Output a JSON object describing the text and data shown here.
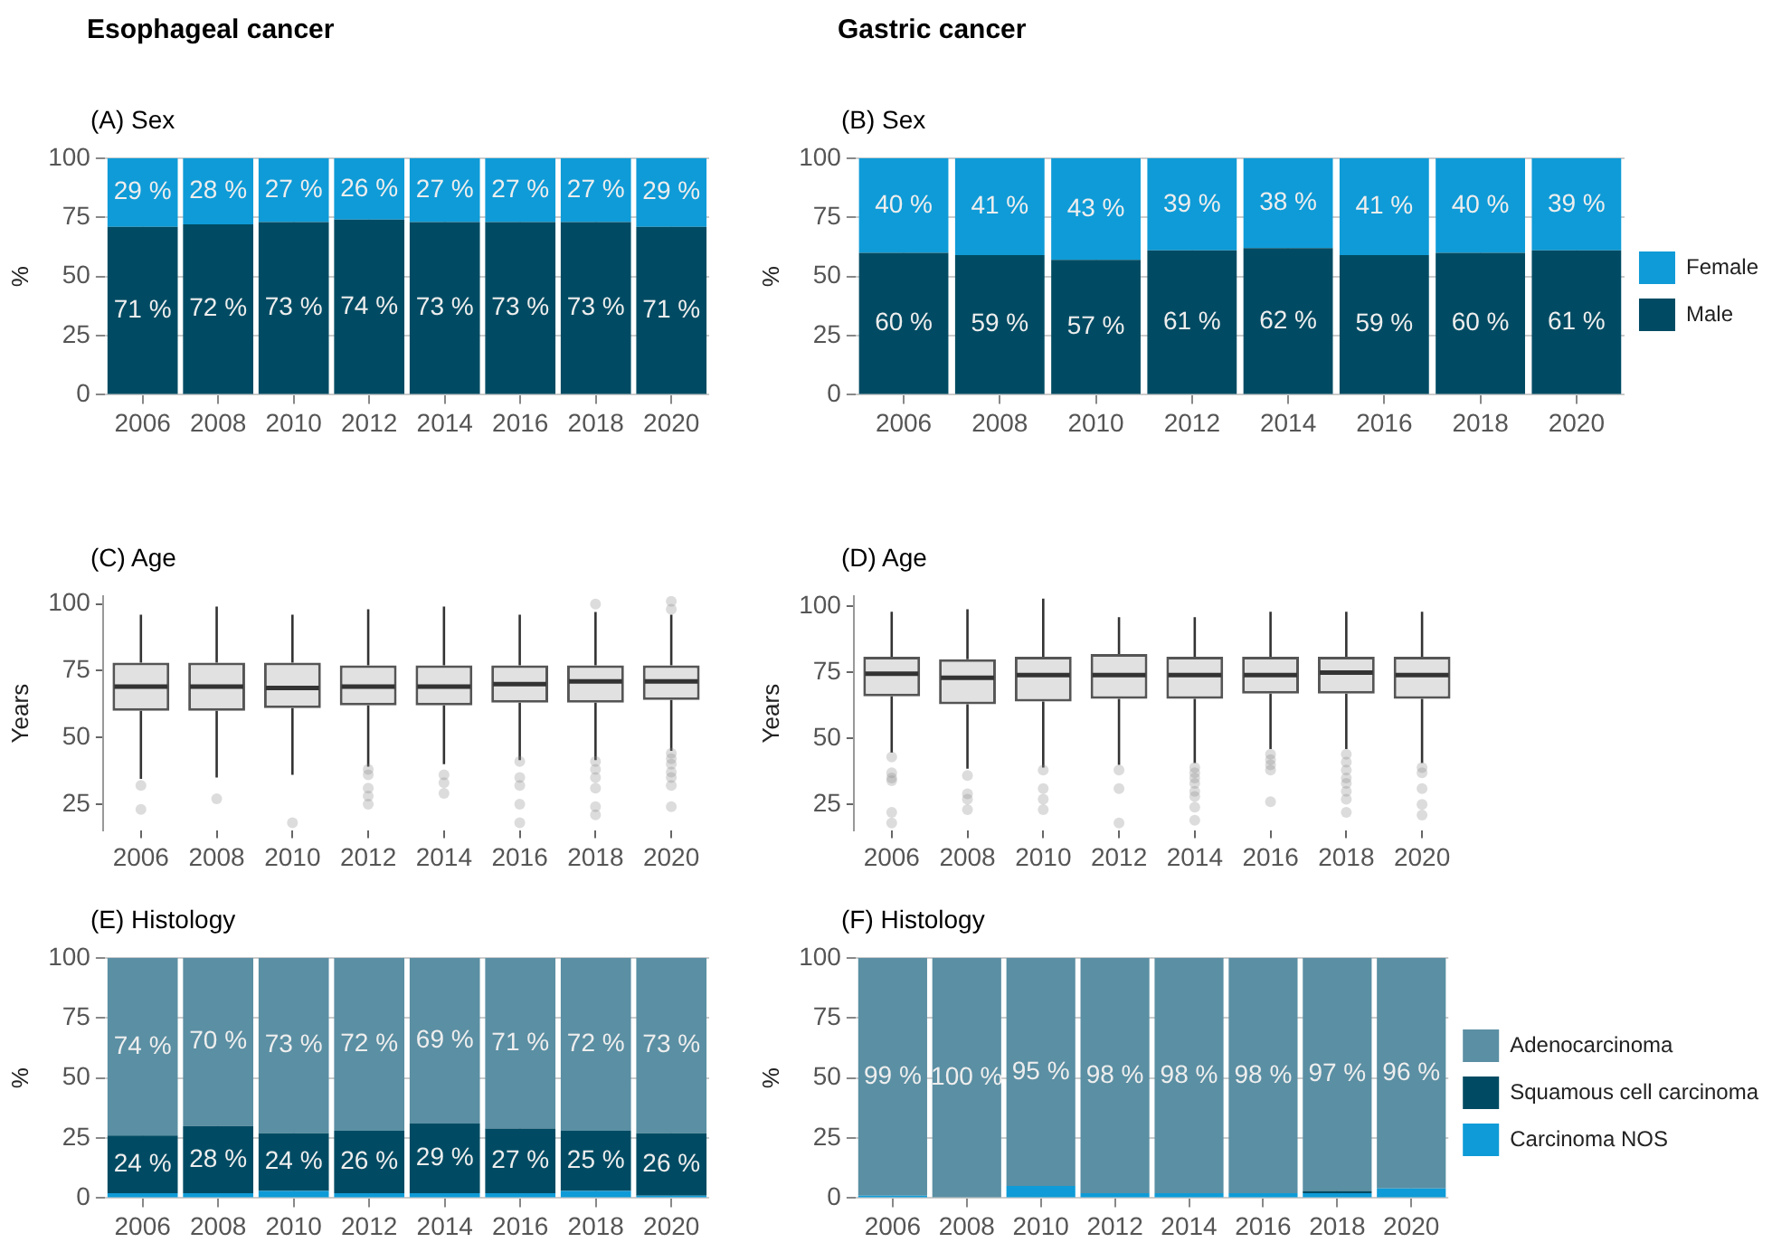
{
  "chart_data": [
    {
      "type": "bar",
      "title": "Esophageal cancer",
      "subtitle": "(A) Sex",
      "ylabel": "%",
      "categories": [
        "2006",
        "2008",
        "2010",
        "2012",
        "2014",
        "2016",
        "2018",
        "2020"
      ],
      "stacked": true,
      "ylim": [
        0,
        100
      ],
      "yticks": [
        0,
        25,
        50,
        75,
        100
      ],
      "grid": true,
      "series": [
        {
          "color": "#004b63",
          "values": [
            71,
            72,
            73,
            74,
            73,
            73,
            73,
            71
          ],
          "value_labels": [
            "71 %",
            "72 %",
            "73 %",
            "74 %",
            "73 %",
            "73 %",
            "73 %",
            "71 %"
          ]
        },
        {
          "color": "#0f9bd7",
          "values": [
            29,
            28,
            27,
            26,
            27,
            27,
            27,
            29
          ],
          "value_labels": [
            "29 %",
            "28 %",
            "27 %",
            "26 %",
            "27 %",
            "27 %",
            "27 %",
            "29 %"
          ]
        }
      ]
    },
    {
      "type": "bar",
      "title": "Gastric cancer",
      "subtitle": "(B) Sex",
      "ylabel": "%",
      "categories": [
        "2006",
        "2008",
        "2010",
        "2012",
        "2014",
        "2016",
        "2018",
        "2020"
      ],
      "stacked": true,
      "ylim": [
        0,
        100
      ],
      "yticks": [
        0,
        25,
        50,
        75,
        100
      ],
      "grid": true,
      "legend": "right",
      "series": [
        {
          "name": "Male",
          "color": "#004b63",
          "values": [
            60,
            59,
            57,
            61,
            62,
            59,
            60,
            61
          ],
          "value_labels": [
            "60 %",
            "59 %",
            "57 %",
            "61 %",
            "62 %",
            "59 %",
            "60 %",
            "61 %"
          ]
        },
        {
          "name": "Female",
          "color": "#0f9bd7",
          "values": [
            40,
            41,
            43,
            39,
            38,
            41,
            40,
            39
          ],
          "value_labels": [
            "40 %",
            "41 %",
            "43 %",
            "39 %",
            "38 %",
            "41 %",
            "40 %",
            "39 %"
          ]
        }
      ]
    },
    {
      "type": "box",
      "subtitle": "(C) Age",
      "ylabel": "Years",
      "categories": [
        "2006",
        "2008",
        "2010",
        "2012",
        "2014",
        "2016",
        "2018",
        "2020"
      ],
      "ylim": [
        15,
        103
      ],
      "yticks": [
        25,
        50,
        75,
        100
      ],
      "grid": false,
      "boxes": [
        {
          "low": 34.5,
          "q1": 60,
          "median": 69,
          "q3": 78,
          "high": 96,
          "outliers": [
            32,
            23
          ]
        },
        {
          "low": 35,
          "q1": 60,
          "median": 69,
          "q3": 78,
          "high": 99,
          "outliers": [
            27
          ]
        },
        {
          "low": 36,
          "q1": 61,
          "median": 68.5,
          "q3": 78,
          "high": 96,
          "outliers": [
            18
          ]
        },
        {
          "low": 39,
          "q1": 62,
          "median": 69,
          "q3": 77,
          "high": 98,
          "outliers": [
            38,
            36,
            31,
            28,
            25
          ]
        },
        {
          "low": 40,
          "q1": 62,
          "median": 69,
          "q3": 77,
          "high": 99,
          "outliers": [
            36,
            33,
            29
          ]
        },
        {
          "low": 41.5,
          "q1": 63,
          "median": 70,
          "q3": 77,
          "high": 96,
          "outliers": [
            41,
            35,
            32,
            25,
            18
          ]
        },
        {
          "low": 41.5,
          "q1": 63,
          "median": 71,
          "q3": 77,
          "high": 97,
          "outliers": [
            100,
            41,
            38,
            35,
            31,
            24,
            21
          ]
        },
        {
          "low": 45,
          "q1": 64,
          "median": 71,
          "q3": 77,
          "high": 96,
          "outliers": [
            101,
            98,
            44,
            42,
            40,
            37,
            35,
            32,
            24
          ]
        }
      ]
    },
    {
      "type": "box",
      "subtitle": "(D) Age",
      "ylabel": "Years",
      "categories": [
        "2006",
        "2008",
        "2010",
        "2012",
        "2014",
        "2016",
        "2018",
        "2020"
      ],
      "ylim": [
        15,
        104
      ],
      "yticks": [
        25,
        50,
        75,
        100
      ],
      "grid": false,
      "boxes": [
        {
          "low": 44.6,
          "q1": 66,
          "median": 74.5,
          "q3": 81,
          "high": 98,
          "outliers": [
            43,
            37,
            35,
            34,
            22,
            18
          ]
        },
        {
          "low": 38.5,
          "q1": 63,
          "median": 73,
          "q3": 80,
          "high": 99,
          "outliers": [
            36,
            29,
            27,
            23
          ]
        },
        {
          "low": 39,
          "q1": 64,
          "median": 74,
          "q3": 81,
          "high": 103,
          "outliers": [
            38,
            31,
            27,
            23
          ]
        },
        {
          "low": 40,
          "q1": 65,
          "median": 74,
          "q3": 82,
          "high": 96,
          "outliers": [
            38,
            31,
            18
          ]
        },
        {
          "low": 40.7,
          "q1": 65,
          "median": 74,
          "q3": 81,
          "high": 96,
          "outliers": [
            39,
            37,
            35,
            33,
            30,
            28,
            24,
            19
          ]
        },
        {
          "low": 46,
          "q1": 67,
          "median": 74,
          "q3": 81,
          "high": 98,
          "outliers": [
            44,
            42,
            40,
            38,
            26
          ]
        },
        {
          "low": 46,
          "q1": 67,
          "median": 75,
          "q3": 81,
          "high": 98,
          "outliers": [
            44,
            41,
            38,
            35,
            33,
            30,
            27,
            22
          ]
        },
        {
          "low": 40.7,
          "q1": 65,
          "median": 74,
          "q3": 81,
          "high": 98,
          "outliers": [
            39,
            37,
            31,
            25,
            21
          ]
        }
      ]
    },
    {
      "type": "bar",
      "subtitle": "(E) Histology",
      "ylabel": "%",
      "categories": [
        "2006",
        "2008",
        "2010",
        "2012",
        "2014",
        "2016",
        "2018",
        "2020"
      ],
      "stacked": true,
      "ylim": [
        0,
        100
      ],
      "yticks": [
        0,
        25,
        50,
        75,
        100
      ],
      "grid": true,
      "series": [
        {
          "color": "#0f9bd7",
          "values": [
            2,
            2,
            3,
            2,
            2,
            2,
            3,
            1
          ]
        },
        {
          "color": "#004b63",
          "values": [
            24,
            28,
            24,
            26,
            29,
            27,
            25,
            26
          ],
          "value_labels": [
            "24 %",
            "28 %",
            "24 %",
            "26 %",
            "29 %",
            "27 %",
            "25 %",
            "26 %"
          ]
        },
        {
          "color": "#5b8fa3",
          "values": [
            74,
            70,
            73,
            72,
            69,
            71,
            72,
            73
          ],
          "value_labels": [
            "74 %",
            "70 %",
            "73 %",
            "72 %",
            "69 %",
            "71 %",
            "72 %",
            "73 %"
          ]
        }
      ]
    },
    {
      "type": "bar",
      "subtitle": "(F) Histology",
      "ylabel": "%",
      "categories": [
        "2006",
        "2008",
        "2010",
        "2012",
        "2014",
        "2016",
        "2018",
        "2020"
      ],
      "stacked": true,
      "ylim": [
        0,
        100
      ],
      "yticks": [
        0,
        25,
        50,
        75,
        100
      ],
      "grid": true,
      "legend": "right",
      "series": [
        {
          "name": "Carcinoma NOS",
          "color": "#0f9bd7",
          "values": [
            1,
            0,
            5,
            2,
            2,
            2,
            2,
            4
          ]
        },
        {
          "name": "Squamous cell carcinoma",
          "color": "#004b63",
          "values": [
            0,
            0,
            0,
            0,
            0,
            0,
            1,
            0
          ]
        },
        {
          "name": "Adenocarcinoma",
          "color": "#5b8fa3",
          "values": [
            99,
            100,
            95,
            98,
            98,
            98,
            97,
            96
          ],
          "value_labels": [
            "99 %",
            "100 %",
            "95 %",
            "98 %",
            "98 %",
            "98 %",
            "97 %",
            "96 %"
          ]
        }
      ]
    }
  ]
}
